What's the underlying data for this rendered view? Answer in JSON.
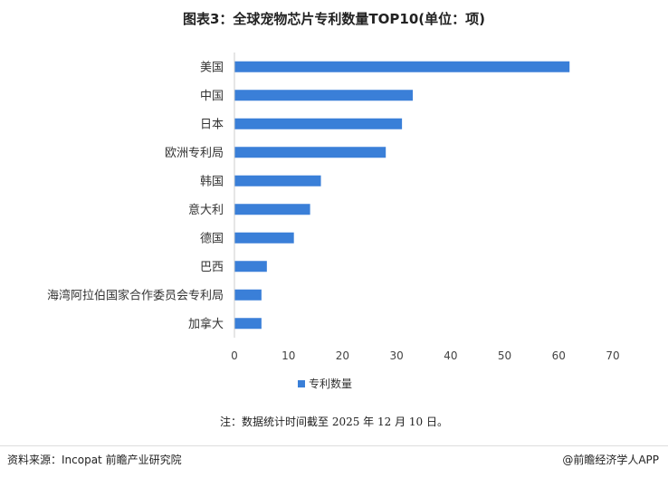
{
  "chart_data": {
    "type": "bar",
    "orientation": "horizontal",
    "title": "图表3：全球宠物芯片专利数量TOP10(单位：项)",
    "categories": [
      "美国",
      "中国",
      "日本",
      "欧洲专利局",
      "韩国",
      "意大利",
      "德国",
      "巴西",
      "海湾阿拉伯国家合作委员会专利局",
      "加拿大"
    ],
    "series": [
      {
        "name": "专利数量",
        "values": [
          62,
          33,
          31,
          28,
          16,
          14,
          11,
          6,
          5,
          5
        ]
      }
    ],
    "xlim": [
      0,
      70
    ],
    "xticks": [
      "0",
      "10",
      "20",
      "30",
      "40",
      "50",
      "60",
      "70"
    ],
    "grid": false,
    "legend": "bottom",
    "color": "#3a7fd8"
  },
  "note": "注：数据统计时间截至 2025 年 12 月 10 日。",
  "source": "资料来源：Incopat 前瞻产业研究院",
  "brand": "@前瞻经济学人APP"
}
